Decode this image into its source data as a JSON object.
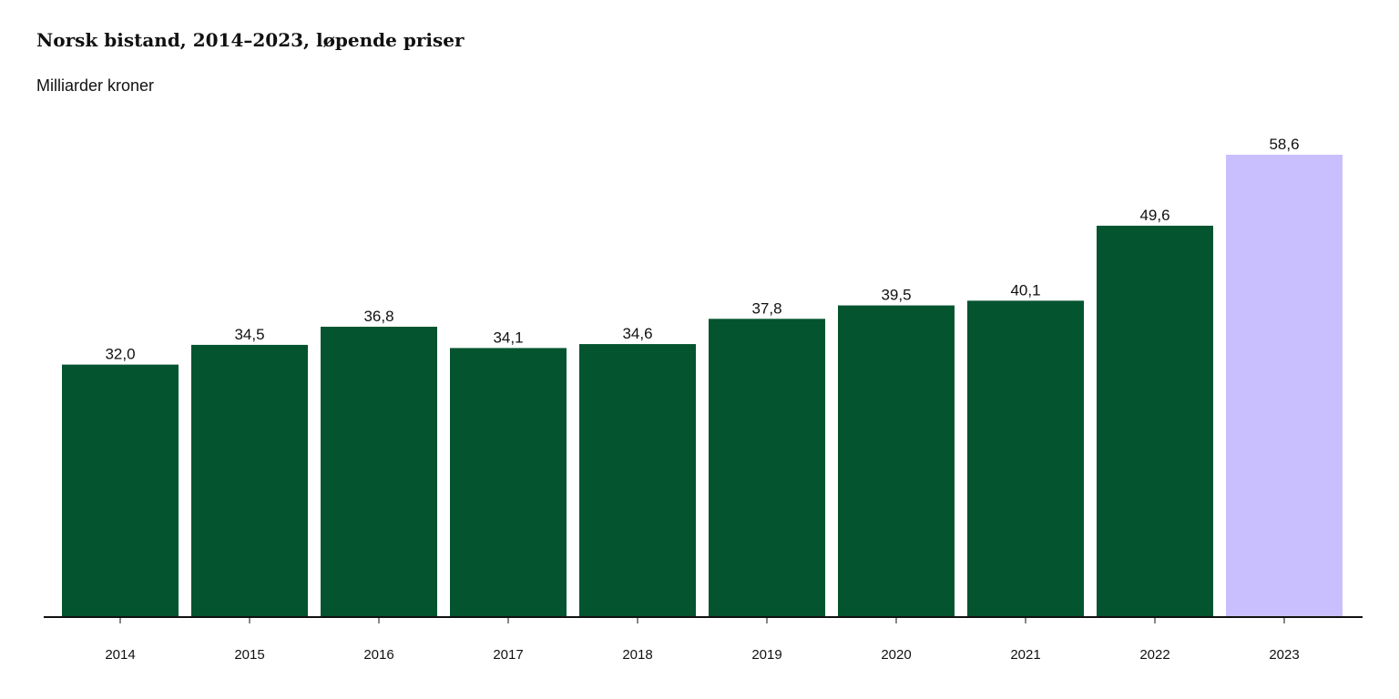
{
  "chart_data": {
    "type": "bar",
    "title": "Norsk bistand, 2014–2023, løpende priser",
    "subtitle": "Milliarder kroner",
    "xlabel": "",
    "ylabel": "",
    "categories": [
      "2014",
      "2015",
      "2016",
      "2017",
      "2018",
      "2019",
      "2020",
      "2021",
      "2022",
      "2023"
    ],
    "values": [
      32.0,
      34.5,
      36.8,
      34.1,
      34.6,
      37.8,
      39.5,
      40.1,
      49.6,
      58.6
    ],
    "value_labels": [
      "32,0",
      "34,5",
      "36,8",
      "34,1",
      "34,6",
      "37,8",
      "39,5",
      "40,1",
      "49,6",
      "58,6"
    ],
    "ylim": [
      0,
      58.6
    ],
    "grid": false,
    "legend": "none",
    "colors": {
      "bar": "#045430",
      "highlight_bar": "#c9bfff",
      "axis": "#111111"
    },
    "highlight_category": "2023"
  }
}
